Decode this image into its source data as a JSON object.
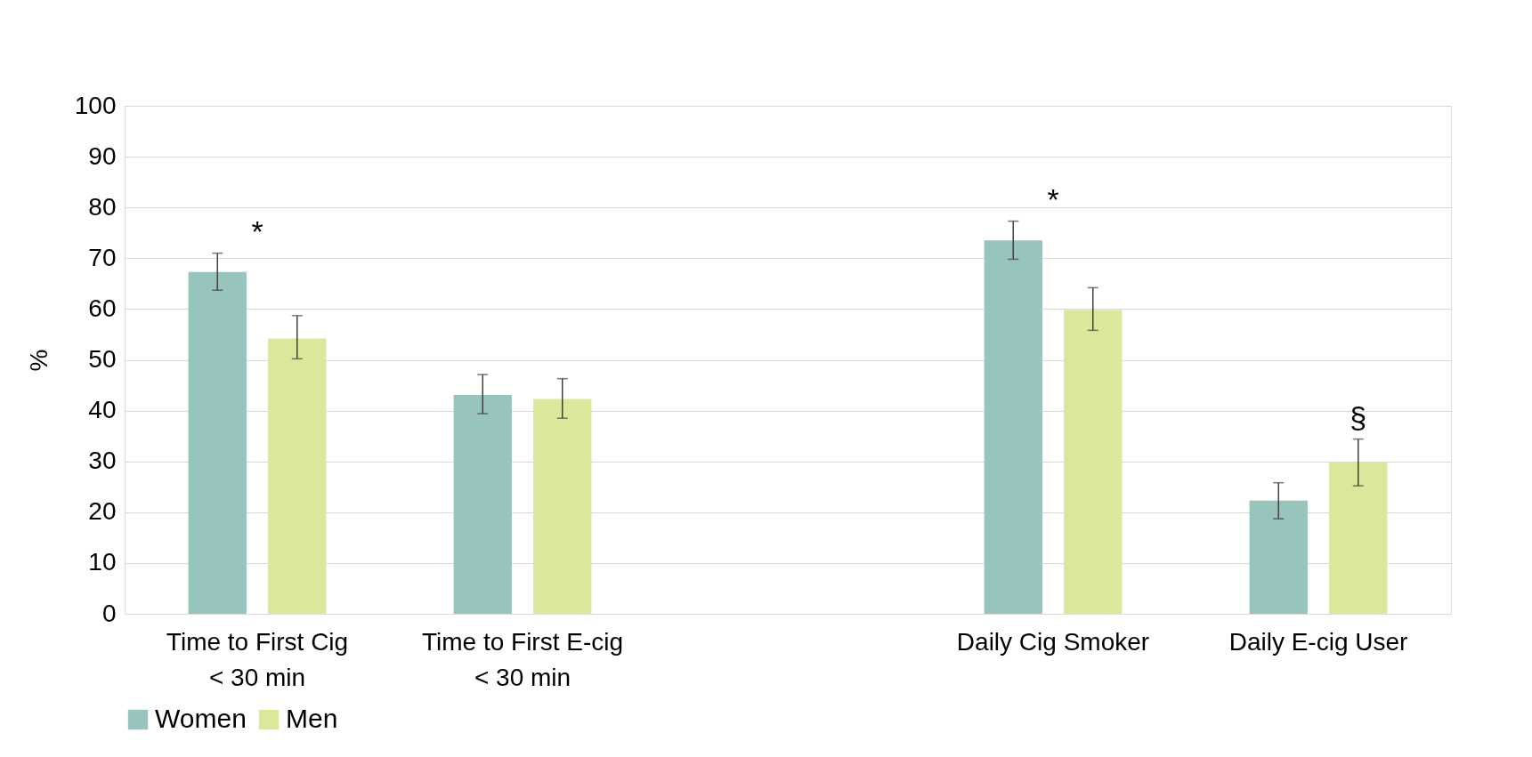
{
  "chart_data": {
    "type": "bar",
    "ylabel": "%",
    "categories": [
      "Time to First Cig\n< 30 min",
      "Time to First E-cig\n< 30 min",
      null,
      "Daily Cig Smoker",
      "Daily E-cig User"
    ],
    "series": [
      {
        "name": "Women",
        "color": "#97c4bd",
        "values": [
          67.3,
          43.1,
          null,
          73.5,
          22.3
        ],
        "errors": [
          [
            63.7,
            71.0
          ],
          [
            39.4,
            47.1
          ],
          null,
          [
            69.8,
            77.3
          ],
          [
            18.7,
            25.8
          ]
        ]
      },
      {
        "name": "Men",
        "color": "#d9e89a",
        "values": [
          54.2,
          42.3,
          null,
          59.8,
          29.8
        ],
        "errors": [
          [
            50.2,
            58.7
          ],
          [
            38.5,
            46.3
          ],
          null,
          [
            55.8,
            64.2
          ],
          [
            25.2,
            34.4
          ]
        ]
      }
    ],
    "annotations": [
      "*",
      "*",
      "§"
    ],
    "ylim": [
      0,
      100
    ],
    "yticks": [
      0,
      10,
      20,
      30,
      40,
      50,
      60,
      70,
      80,
      90,
      100
    ],
    "grid": "y",
    "legend": "bottom"
  }
}
